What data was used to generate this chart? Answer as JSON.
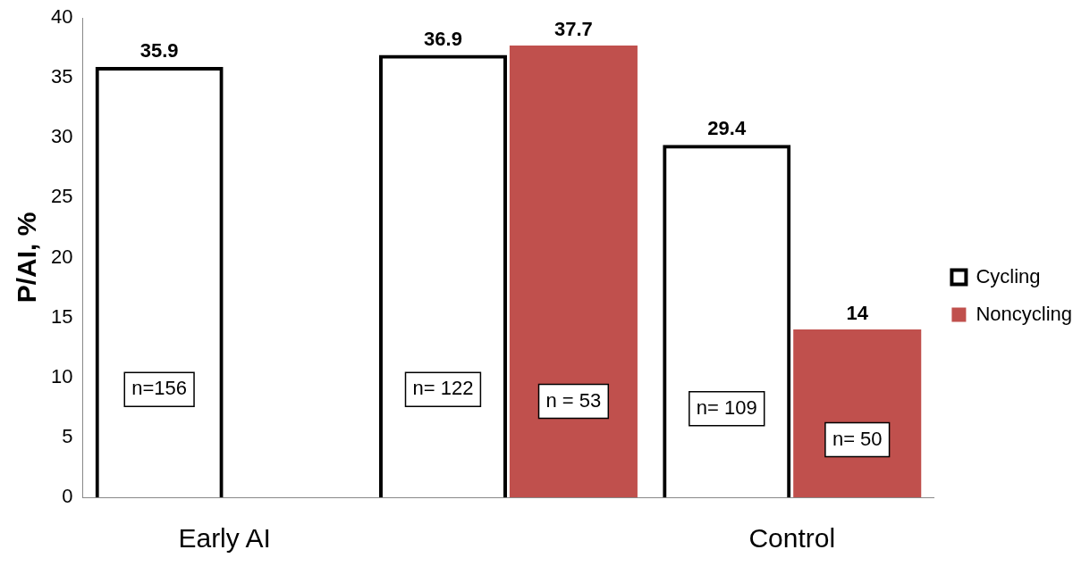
{
  "chart_data": {
    "type": "bar",
    "ylabel": "P/AI, %",
    "categories": [
      "Early AI",
      null,
      "Control"
    ],
    "series": [
      {
        "name": "Cycling",
        "color": "#000000",
        "values": [
          35.9,
          36.9,
          29.4
        ]
      },
      {
        "name": "Noncycling",
        "color": "#c0504d",
        "values": [
          null,
          37.7,
          14
        ]
      }
    ],
    "ylim": [
      0,
      40
    ],
    "yticks": [
      0,
      5,
      10,
      15,
      20,
      25,
      30,
      35,
      40
    ],
    "grid": false,
    "legend": "right",
    "data_labels": true,
    "annotations": [
      "n=156",
      "n= 122",
      "n = 53",
      "n= 109",
      "n= 50"
    ]
  }
}
